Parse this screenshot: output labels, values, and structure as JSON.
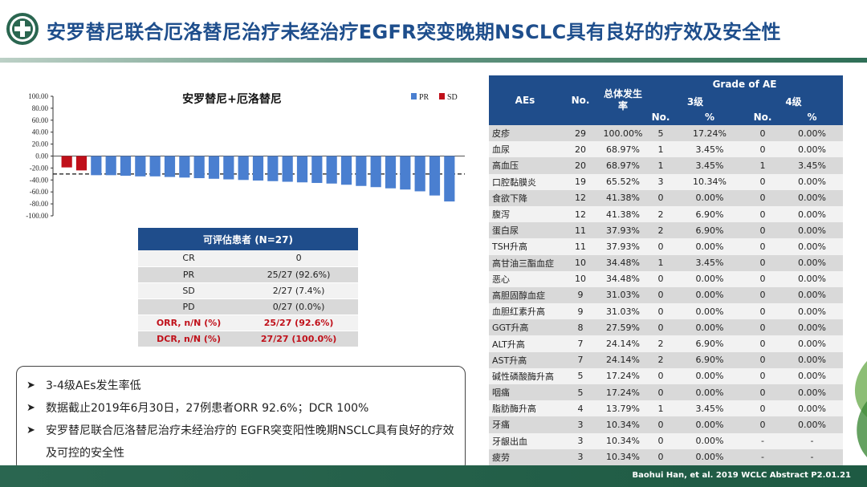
{
  "header": {
    "title": "安罗替尼联合厄洛替尼治疗未经治疗EGFR突变晚期NSCLC具有良好的疗效及安全性"
  },
  "colors": {
    "brand_blue": "#1f4d8b",
    "pr_bar": "#4a7fd0",
    "sd_bar": "#c0101a",
    "footer_green": "#1e5a43"
  },
  "chart_data": {
    "type": "bar",
    "title": "安罗替尼+厄洛替尼",
    "legend": [
      "PR",
      "SD"
    ],
    "legend_position": "top-right",
    "ylim": [
      -100,
      100
    ],
    "yticks": [
      "100.00",
      "80.00",
      "60.00",
      "40.00",
      "20.00",
      "0.00",
      "-20.00",
      "-40.00",
      "-60.00",
      "-80.00",
      "-100.00"
    ],
    "reference_line": -30,
    "series": [
      {
        "name": "SD",
        "values": [
          -19,
          -24,
          null,
          null,
          null,
          null,
          null,
          null,
          null,
          null,
          null,
          null,
          null,
          null,
          null,
          null,
          null,
          null,
          null,
          null,
          null,
          null,
          null,
          null,
          null,
          null,
          null
        ]
      },
      {
        "name": "PR",
        "values": [
          null,
          null,
          -32,
          -32,
          -33,
          -34,
          -34,
          -35,
          -36,
          -37,
          -38,
          -39,
          -40,
          -41,
          -42,
          -43,
          -44,
          -45,
          -46,
          -48,
          -50,
          -52,
          -54,
          -56,
          -59,
          -66,
          -76
        ]
      }
    ]
  },
  "response_table": {
    "header": "可评估患者 (N=27)",
    "rows": [
      {
        "label": "CR",
        "value": "0",
        "style": "norm"
      },
      {
        "label": "PR",
        "value": "25/27 (92.6%)",
        "style": "alt"
      },
      {
        "label": "SD",
        "value": "2/27 (7.4%)",
        "style": "norm"
      },
      {
        "label": "PD",
        "value": "0/27 (0.0%)",
        "style": "alt"
      },
      {
        "label": "ORR, n/N (%)",
        "value": "25/27 (92.6%)",
        "style": "norm red"
      },
      {
        "label": "DCR, n/N (%)",
        "value": "27/27 (100.0%)",
        "style": "alt red"
      }
    ]
  },
  "notes": {
    "items": [
      "3-4级AEs发生率低",
      "数据截止2019年6月30日，27例患者ORR 92.6%；DCR 100%",
      "安罗替尼联合厄洛替尼治疗未经治疗的 EGFR突变阳性晚期NSCLC具有良好的疗效及可控的安全性"
    ]
  },
  "ae_table": {
    "headers": {
      "aes": "AEs",
      "no": "No.",
      "overall_rate": "总体发生率",
      "grade_of_ae": "Grade of AE",
      "grade3": "3级",
      "grade4": "4级",
      "sub_no": "No.",
      "sub_pct": "%"
    },
    "rows": [
      [
        "皮疹",
        "29",
        "100.00%",
        "5",
        "17.24%",
        "0",
        "0.00%"
      ],
      [
        "血尿",
        "20",
        "68.97%",
        "1",
        "3.45%",
        "0",
        "0.00%"
      ],
      [
        "高血压",
        "20",
        "68.97%",
        "1",
        "3.45%",
        "1",
        "3.45%"
      ],
      [
        "口腔黏膜炎",
        "19",
        "65.52%",
        "3",
        "10.34%",
        "0",
        "0.00%"
      ],
      [
        "食欲下降",
        "12",
        "41.38%",
        "0",
        "0.00%",
        "0",
        "0.00%"
      ],
      [
        "腹泻",
        "12",
        "41.38%",
        "2",
        "6.90%",
        "0",
        "0.00%"
      ],
      [
        "蛋白尿",
        "11",
        "37.93%",
        "2",
        "6.90%",
        "0",
        "0.00%"
      ],
      [
        "TSH升高",
        "11",
        "37.93%",
        "0",
        "0.00%",
        "0",
        "0.00%"
      ],
      [
        "高甘油三酯血症",
        "10",
        "34.48%",
        "1",
        "3.45%",
        "0",
        "0.00%"
      ],
      [
        "恶心",
        "10",
        "34.48%",
        "0",
        "0.00%",
        "0",
        "0.00%"
      ],
      [
        "高胆固醇血症",
        "9",
        "31.03%",
        "0",
        "0.00%",
        "0",
        "0.00%"
      ],
      [
        "血胆红素升高",
        "9",
        "31.03%",
        "0",
        "0.00%",
        "0",
        "0.00%"
      ],
      [
        "GGT升高",
        "8",
        "27.59%",
        "0",
        "0.00%",
        "0",
        "0.00%"
      ],
      [
        "ALT升高",
        "7",
        "24.14%",
        "2",
        "6.90%",
        "0",
        "0.00%"
      ],
      [
        "AST升高",
        "7",
        "24.14%",
        "2",
        "6.90%",
        "0",
        "0.00%"
      ],
      [
        "碱性磷酸酶升高",
        "5",
        "17.24%",
        "0",
        "0.00%",
        "0",
        "0.00%"
      ],
      [
        "咽痛",
        "5",
        "17.24%",
        "0",
        "0.00%",
        "0",
        "0.00%"
      ],
      [
        "脂肪酶升高",
        "4",
        "13.79%",
        "1",
        "3.45%",
        "0",
        "0.00%"
      ],
      [
        "牙痛",
        "3",
        "10.34%",
        "0",
        "0.00%",
        "0",
        "0.00%"
      ],
      [
        "牙龈出血",
        "3",
        "10.34%",
        "0",
        "0.00%",
        "-",
        "-"
      ],
      [
        "疲劳",
        "3",
        "10.34%",
        "0",
        "0.00%",
        "-",
        "-"
      ]
    ]
  },
  "footer": {
    "citation": "Baohui Han, et al. 2019 WCLC Abstract P2.01.21"
  }
}
